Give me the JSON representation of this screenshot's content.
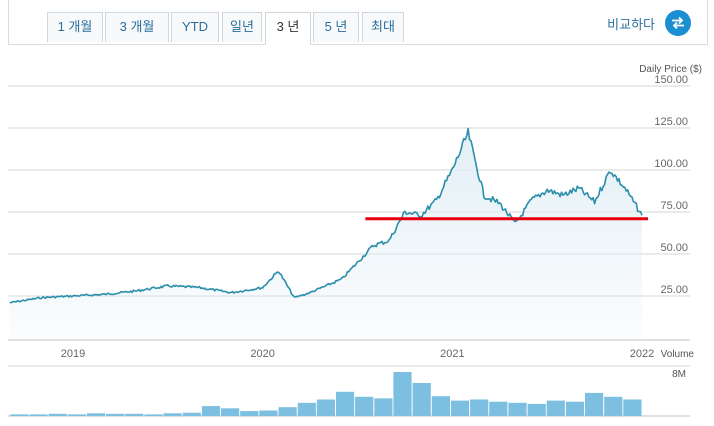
{
  "tabs": [
    {
      "label": "1 개월"
    },
    {
      "label": "3 개월"
    },
    {
      "label": "YTD"
    },
    {
      "label": "일년"
    },
    {
      "label": "3 년"
    },
    {
      "label": "5 년"
    },
    {
      "label": "최대"
    }
  ],
  "active_tab": "3 년",
  "compare": {
    "label": "비교하다",
    "icon": "swap-arrows-icon"
  },
  "colors": {
    "line": "#2b8eaa",
    "fill": "#e3eff6",
    "volume": "#7cbfe0",
    "support": "#e8000f",
    "accent": "#1a8fd2"
  },
  "chart_data": [
    {
      "type": "line",
      "ylabel": "Daily Price ($)",
      "ylim": [
        0,
        150
      ],
      "yticks": [
        "150.00",
        "125.00",
        "100.00",
        "75.00",
        "50.00",
        "25.00"
      ],
      "xticks": [
        "2019",
        "2020",
        "2021",
        "2022"
      ],
      "x_range": [
        "2018-09",
        "2022-01"
      ],
      "series": [
        {
          "x": [
            "2018-09",
            "2018-11",
            "2019-01",
            "2019-03",
            "2019-05",
            "2019-07",
            "2019-09",
            "2019-11",
            "2020-01",
            "2020-02",
            "2020-03",
            "2020-04",
            "2020-05",
            "2020-06",
            "2020-07",
            "2020-08",
            "2020-09",
            "2020-10",
            "2020-11",
            "2020-12",
            "2021-01",
            "2021-02",
            "2021-03",
            "2021-04",
            "2021-05",
            "2021-06",
            "2021-07",
            "2021-08",
            "2021-09",
            "2021-10",
            "2021-11",
            "2021-12",
            "2022-01"
          ],
          "values": [
            21,
            24,
            25,
            26,
            28,
            31,
            30,
            27,
            30,
            40,
            24,
            27,
            31,
            35,
            45,
            55,
            58,
            75,
            73,
            82,
            100,
            122,
            85,
            80,
            68,
            82,
            88,
            85,
            89,
            81,
            100,
            88,
            73
          ]
        }
      ],
      "annotation": {
        "type": "horizontal-line",
        "y": 71,
        "from": "2020-08",
        "to": "2022-01"
      }
    },
    {
      "type": "bar",
      "ylabel": "Volume",
      "yticks": [
        "8M"
      ],
      "ylim": [
        0,
        8
      ],
      "values": [
        0.3,
        0.3,
        0.4,
        0.3,
        0.5,
        0.4,
        0.4,
        0.3,
        0.5,
        0.6,
        1.8,
        1.4,
        0.9,
        1.0,
        1.6,
        2.4,
        3.0,
        4.4,
        3.5,
        3.2,
        8.0,
        6.0,
        3.6,
        2.8,
        3.0,
        2.6,
        2.4,
        2.2,
        2.8,
        2.6,
        4.2,
        3.5,
        3.0
      ]
    }
  ]
}
